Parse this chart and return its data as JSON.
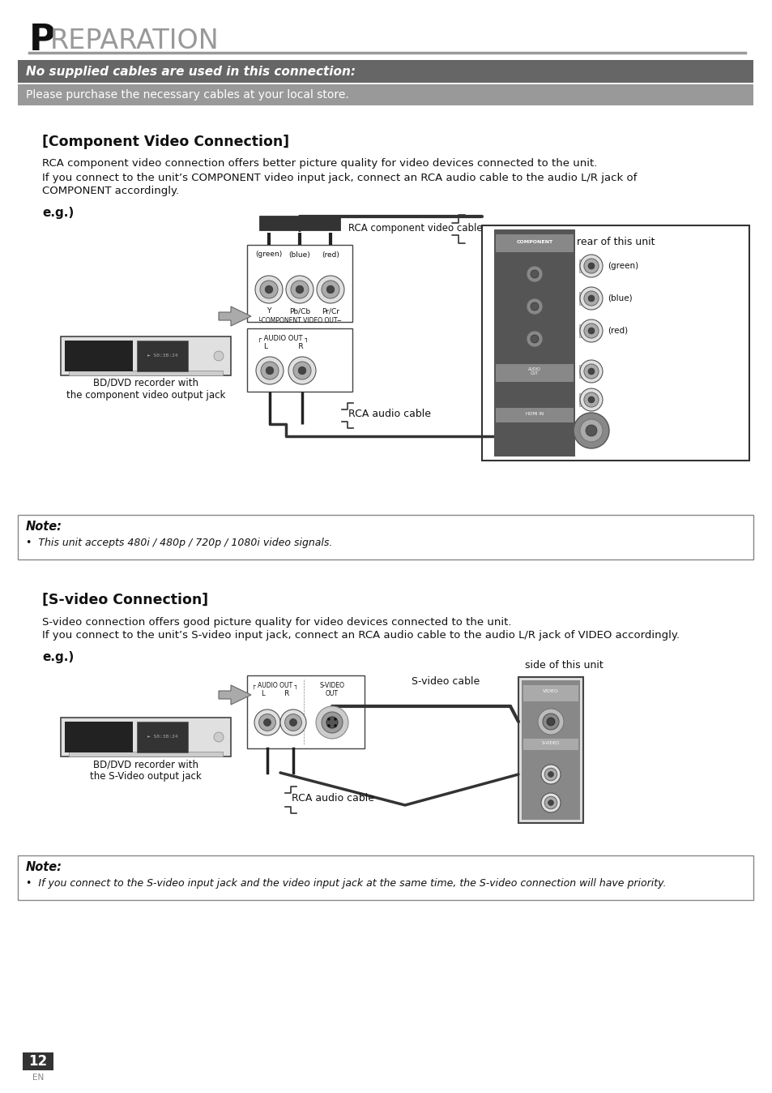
{
  "title_P": "P",
  "title_rest": "REPARATION",
  "header_text1": "No supplied cables are used in this connection:",
  "header_text2": "Please purchase the necessary cables at your local store.",
  "section1_title": "[Component Video Connection]",
  "section1_body1": "RCA component video connection offers better picture quality for video devices connected to the unit.",
  "section1_body2": "If you connect to the unit’s COMPONENT video input jack, connect an RCA audio cable to the audio L/R jack of",
  "section1_body3": "COMPONENT accordingly.",
  "eg1": "e.g.)",
  "label_rca_cable": "RCA component video cable",
  "label_rear": "rear of this unit",
  "label_green1": "(green)",
  "label_blue1": "(blue)",
  "label_red1": "(red)",
  "label_green2": "(green)",
  "label_blue2": "(blue)",
  "label_red2": "(red)",
  "label_Y": "Y",
  "label_PbCb": "Pb/Cb",
  "label_PrCr": "Pr/Cr",
  "label_comp_out": "└COMPONENT VIDEO OUT─",
  "label_audio_out1": "AUDIO OUT",
  "label_LR1": "L          R",
  "label_bd1": "BD/DVD recorder with",
  "label_bd2": "the component video output jack",
  "label_rca_audio1": "RCA audio cable",
  "note1_label": "Note:",
  "note1_body": "•  This unit accepts 480i / 480p / 720p / 1080i video signals.",
  "section2_title": "[S-video Connection]",
  "section2_body1": "S-video connection offers good picture quality for video devices connected to the unit.",
  "section2_body2": "If you connect to the unit’s S-video input jack, connect an RCA audio cable to the audio L/R jack of VIDEO accordingly.",
  "eg2": "e.g.)",
  "label_side": "side of this unit",
  "label_svideo_cable": "S-video cable",
  "label_audio_out2": "AUDIO OUT",
  "label_LR2": "L        R",
  "label_svideo_out2": "S-VIDEO\nOUT",
  "label_bd3": "BD/DVD recorder with",
  "label_bd4": "the S-Video output jack",
  "label_rca_audio2": "RCA audio cable",
  "note2_label": "Note:",
  "note2_body": "•  If you connect to the S-video input jack and the video input jack at the same time, the S-video connection will have priority.",
  "page_num": "12",
  "page_lang": "EN"
}
